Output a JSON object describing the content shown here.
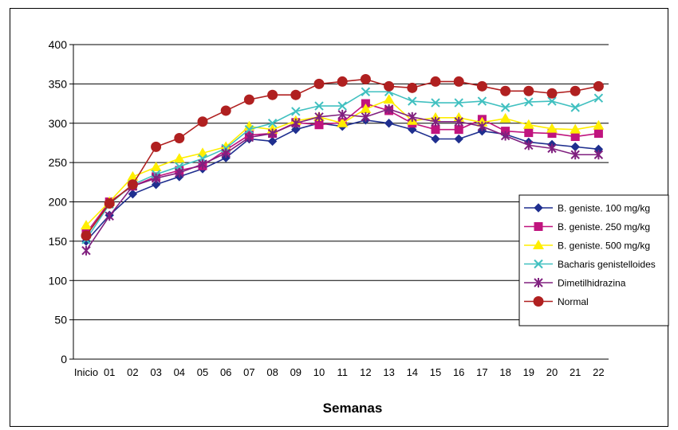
{
  "chart_data": {
    "type": "line",
    "title": "",
    "xlabel": "Semanas",
    "ylabel": "",
    "ylim": [
      0,
      400
    ],
    "yticks": [
      0,
      50,
      100,
      150,
      200,
      250,
      300,
      350,
      400
    ],
    "grid": true,
    "legend_position": "right",
    "categories": [
      "Inicio",
      "01",
      "02",
      "03",
      "04",
      "05",
      "06",
      "07",
      "08",
      "09",
      "10",
      "11",
      "12",
      "13",
      "14",
      "15",
      "16",
      "17",
      "18",
      "19",
      "20",
      "21",
      "22"
    ],
    "series": [
      {
        "name": "B. geniste. 100 mg/kg",
        "color": "#1f2f8f",
        "marker": "diamond",
        "values": [
          150,
          183,
          210,
          222,
          232,
          242,
          256,
          280,
          277,
          292,
          300,
          296,
          304,
          300,
          292,
          280,
          280,
          290,
          286,
          276,
          273,
          270,
          267
        ]
      },
      {
        "name": "B. geniste. 250 mg/kg",
        "color": "#c0147e",
        "marker": "square",
        "values": [
          160,
          200,
          220,
          232,
          240,
          246,
          266,
          285,
          287,
          301,
          298,
          301,
          325,
          316,
          300,
          292,
          292,
          305,
          290,
          288,
          287,
          283,
          287
        ]
      },
      {
        "name": "B. geniste. 500 mg/kg",
        "color": "#ffee00",
        "marker": "triangle",
        "values": [
          170,
          200,
          232,
          244,
          255,
          262,
          270,
          296,
          292,
          303,
          308,
          300,
          318,
          330,
          303,
          307,
          307,
          301,
          306,
          298,
          293,
          292,
          297
        ]
      },
      {
        "name": "Bacharis genistelloides",
        "color": "#40c0c0",
        "marker": "x",
        "values": [
          152,
          197,
          222,
          235,
          245,
          255,
          268,
          292,
          300,
          315,
          322,
          322,
          340,
          340,
          328,
          326,
          326,
          328,
          320,
          327,
          328,
          320,
          332
        ]
      },
      {
        "name": "Dimetilhidrazina",
        "color": "#80207f",
        "marker": "asterisk",
        "values": [
          138,
          182,
          220,
          230,
          237,
          248,
          262,
          282,
          287,
          300,
          308,
          311,
          308,
          318,
          308,
          302,
          302,
          296,
          284,
          272,
          268,
          260,
          260
        ]
      },
      {
        "name": "Normal",
        "color": "#b02020",
        "marker": "circle",
        "values": [
          157,
          198,
          222,
          270,
          281,
          302,
          316,
          330,
          336,
          336,
          350,
          353,
          356,
          347,
          345,
          353,
          353,
          347,
          341,
          341,
          338,
          341,
          347
        ]
      }
    ]
  }
}
